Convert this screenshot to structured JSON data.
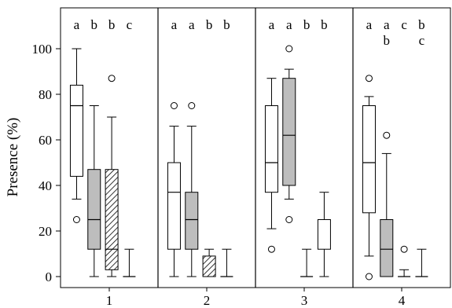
{
  "chart_data": {
    "type": "box",
    "ylabel": "Presence (%)",
    "xlabel": "",
    "ylim": [
      0,
      100
    ],
    "yticks": [
      0,
      20,
      40,
      60,
      80,
      100
    ],
    "grid": false,
    "box_fills": [
      "white",
      "gray",
      "hatched",
      "white"
    ],
    "colors": {
      "gray": "#bdbdbd",
      "line": "#000000",
      "white": "#ffffff"
    },
    "panels": [
      {
        "label": "1",
        "boxes": [
          {
            "letters": [
              "a"
            ],
            "whisker_low": 34,
            "q1": 44,
            "median": 75,
            "q3": 84,
            "whisker_high": 100,
            "outliers": [
              25
            ]
          },
          {
            "letters": [
              "b"
            ],
            "whisker_low": 0,
            "q1": 12,
            "median": 25,
            "q3": 47,
            "whisker_high": 75,
            "outliers": []
          },
          {
            "letters": [
              "b"
            ],
            "whisker_low": 0,
            "q1": 3,
            "median": 12,
            "q3": 47,
            "whisker_high": 70,
            "outliers": [
              87
            ]
          },
          {
            "letters": [
              "c"
            ],
            "whisker_low": 0,
            "q1": 0,
            "median": 0,
            "q3": 0,
            "whisker_high": 12,
            "outliers": []
          }
        ]
      },
      {
        "label": "2",
        "boxes": [
          {
            "letters": [
              "a"
            ],
            "whisker_low": 0,
            "q1": 12,
            "median": 37,
            "q3": 50,
            "whisker_high": 66,
            "outliers": [
              75
            ]
          },
          {
            "letters": [
              "a"
            ],
            "whisker_low": 0,
            "q1": 12,
            "median": 25,
            "q3": 37,
            "whisker_high": 66,
            "outliers": [
              75
            ]
          },
          {
            "letters": [
              "b"
            ],
            "whisker_low": 0,
            "q1": 0,
            "median": 0,
            "q3": 9,
            "whisker_high": 12,
            "outliers": []
          },
          {
            "letters": [
              "b"
            ],
            "whisker_low": 0,
            "q1": 0,
            "median": 0,
            "q3": 0,
            "whisker_high": 12,
            "outliers": []
          }
        ]
      },
      {
        "label": "3",
        "boxes": [
          {
            "letters": [
              "a"
            ],
            "whisker_low": 21,
            "q1": 37,
            "median": 50,
            "q3": 75,
            "whisker_high": 87,
            "outliers": [
              12
            ]
          },
          {
            "letters": [
              "a"
            ],
            "whisker_low": 34,
            "q1": 40,
            "median": 62,
            "q3": 87,
            "whisker_high": 91,
            "outliers": [
              25,
              100
            ]
          },
          {
            "letters": [
              "b"
            ],
            "whisker_low": 0,
            "q1": 0,
            "median": 0,
            "q3": 0,
            "whisker_high": 12,
            "outliers": []
          },
          {
            "letters": [
              "b"
            ],
            "whisker_low": 0,
            "q1": 12,
            "median": 25,
            "q3": 25,
            "whisker_high": 37,
            "outliers": []
          }
        ]
      },
      {
        "label": "4",
        "boxes": [
          {
            "letters": [
              "a"
            ],
            "whisker_low": 9,
            "q1": 28,
            "median": 50,
            "q3": 75,
            "whisker_high": 79,
            "outliers": [
              0,
              87
            ]
          },
          {
            "letters": [
              "a",
              "b"
            ],
            "whisker_low": 0,
            "q1": 0,
            "median": 12,
            "q3": 25,
            "whisker_high": 54,
            "outliers": [
              62
            ]
          },
          {
            "letters": [
              "c"
            ],
            "whisker_low": 0,
            "q1": 0,
            "median": 0,
            "q3": 0,
            "whisker_high": 3,
            "outliers": [
              12
            ]
          },
          {
            "letters": [
              "b",
              "c"
            ],
            "whisker_low": 0,
            "q1": 0,
            "median": 0,
            "q3": 0,
            "whisker_high": 12,
            "outliers": []
          }
        ]
      }
    ]
  }
}
